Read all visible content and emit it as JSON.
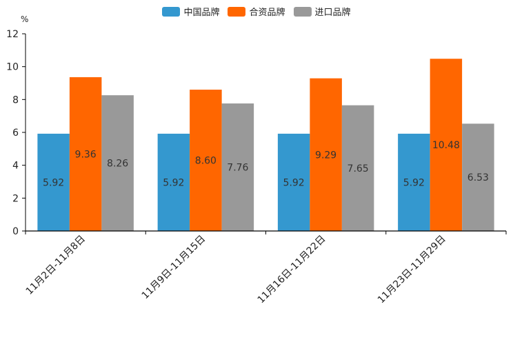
{
  "chart_data": {
    "type": "bar",
    "title": "",
    "unit": "%",
    "xlabel": "",
    "ylabel": "%",
    "ylim": [
      0,
      12
    ],
    "yticks": [
      0,
      2,
      4,
      6,
      8,
      10,
      12
    ],
    "categories": [
      "11月2日-11月8日",
      "11月9日-11月15日",
      "11月16日-11月22日",
      "11月23日-11月29日"
    ],
    "series": [
      {
        "name": "中国品牌",
        "color": "#3498cf",
        "values": [
          5.92,
          5.92,
          5.92,
          5.92
        ],
        "labels": [
          "5.92",
          "5.92",
          "5.92",
          "5.92"
        ]
      },
      {
        "name": "合资品牌",
        "color": "#ff6600",
        "values": [
          9.36,
          8.6,
          9.29,
          10.48
        ],
        "labels": [
          "9.36",
          "8.60",
          "9.29",
          "10.48"
        ]
      },
      {
        "name": "进口品牌",
        "color": "#999999",
        "values": [
          8.26,
          7.76,
          7.65,
          6.53
        ],
        "labels": [
          "8.26",
          "7.76",
          "7.65",
          "6.53"
        ]
      }
    ],
    "legend_position": "top-center",
    "grid": false
  }
}
